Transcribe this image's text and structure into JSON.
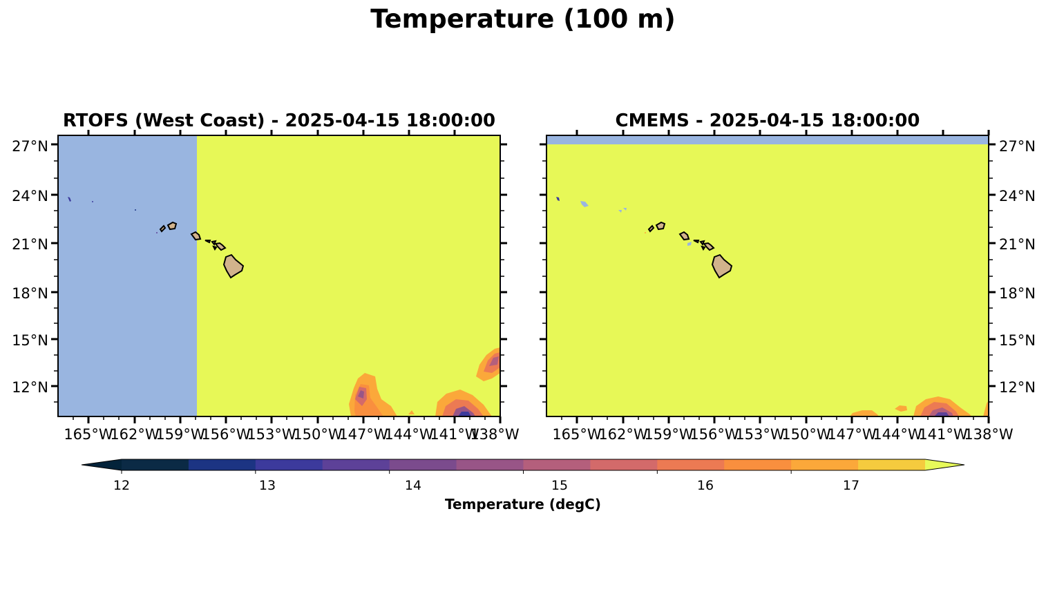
{
  "title": "Temperature (100 m)",
  "panels": [
    {
      "title": "RTOFS (West Coast) - 2025-04-15 18:00:00",
      "lat_labels": [
        "27°N",
        "24°N",
        "21°N",
        "18°N",
        "15°N",
        "12°N"
      ],
      "lon_labels": [
        "165°W",
        "162°W",
        "159°W",
        "156°W",
        "153°W",
        "150°W",
        "147°W",
        "144°W",
        "141°W",
        "138°W"
      ],
      "lat_label_side": "left",
      "no_data_region": "west of ~157.5°W"
    },
    {
      "title": "CMEMS - 2025-04-15 18:00:00",
      "lat_labels": [
        "27°N",
        "24°N",
        "21°N",
        "18°N",
        "15°N",
        "12°N"
      ],
      "lon_labels": [
        "165°W",
        "162°W",
        "159°W",
        "156°W",
        "153°W",
        "150°W",
        "147°W",
        "144°W",
        "141°W",
        "138°W"
      ],
      "lat_label_side": "right",
      "no_data_region": "north of ~27°N"
    }
  ],
  "colorbar": {
    "label": "Temperature (degC)",
    "ticks": [
      "12",
      "13",
      "14",
      "15",
      "16",
      "17"
    ],
    "levels": [
      12,
      12.5,
      13,
      13.5,
      14,
      14.5,
      15,
      15.5,
      16,
      16.5,
      17,
      17.5
    ],
    "colors": [
      "#0b2a45",
      "#1c3483",
      "#3c3a9c",
      "#5d4198",
      "#7b4b8d",
      "#985587",
      "#b45f7c",
      "#d36a6a",
      "#ec7a53",
      "#f98f3e",
      "#fba83a",
      "#f5cb3e"
    ],
    "under_color": "#03233a",
    "over_color": "#e7fa5a",
    "extend": "both"
  },
  "colors": {
    "nodata": "#99b5e0",
    "warm": "#e7f857",
    "land": "#d2b38c"
  }
}
